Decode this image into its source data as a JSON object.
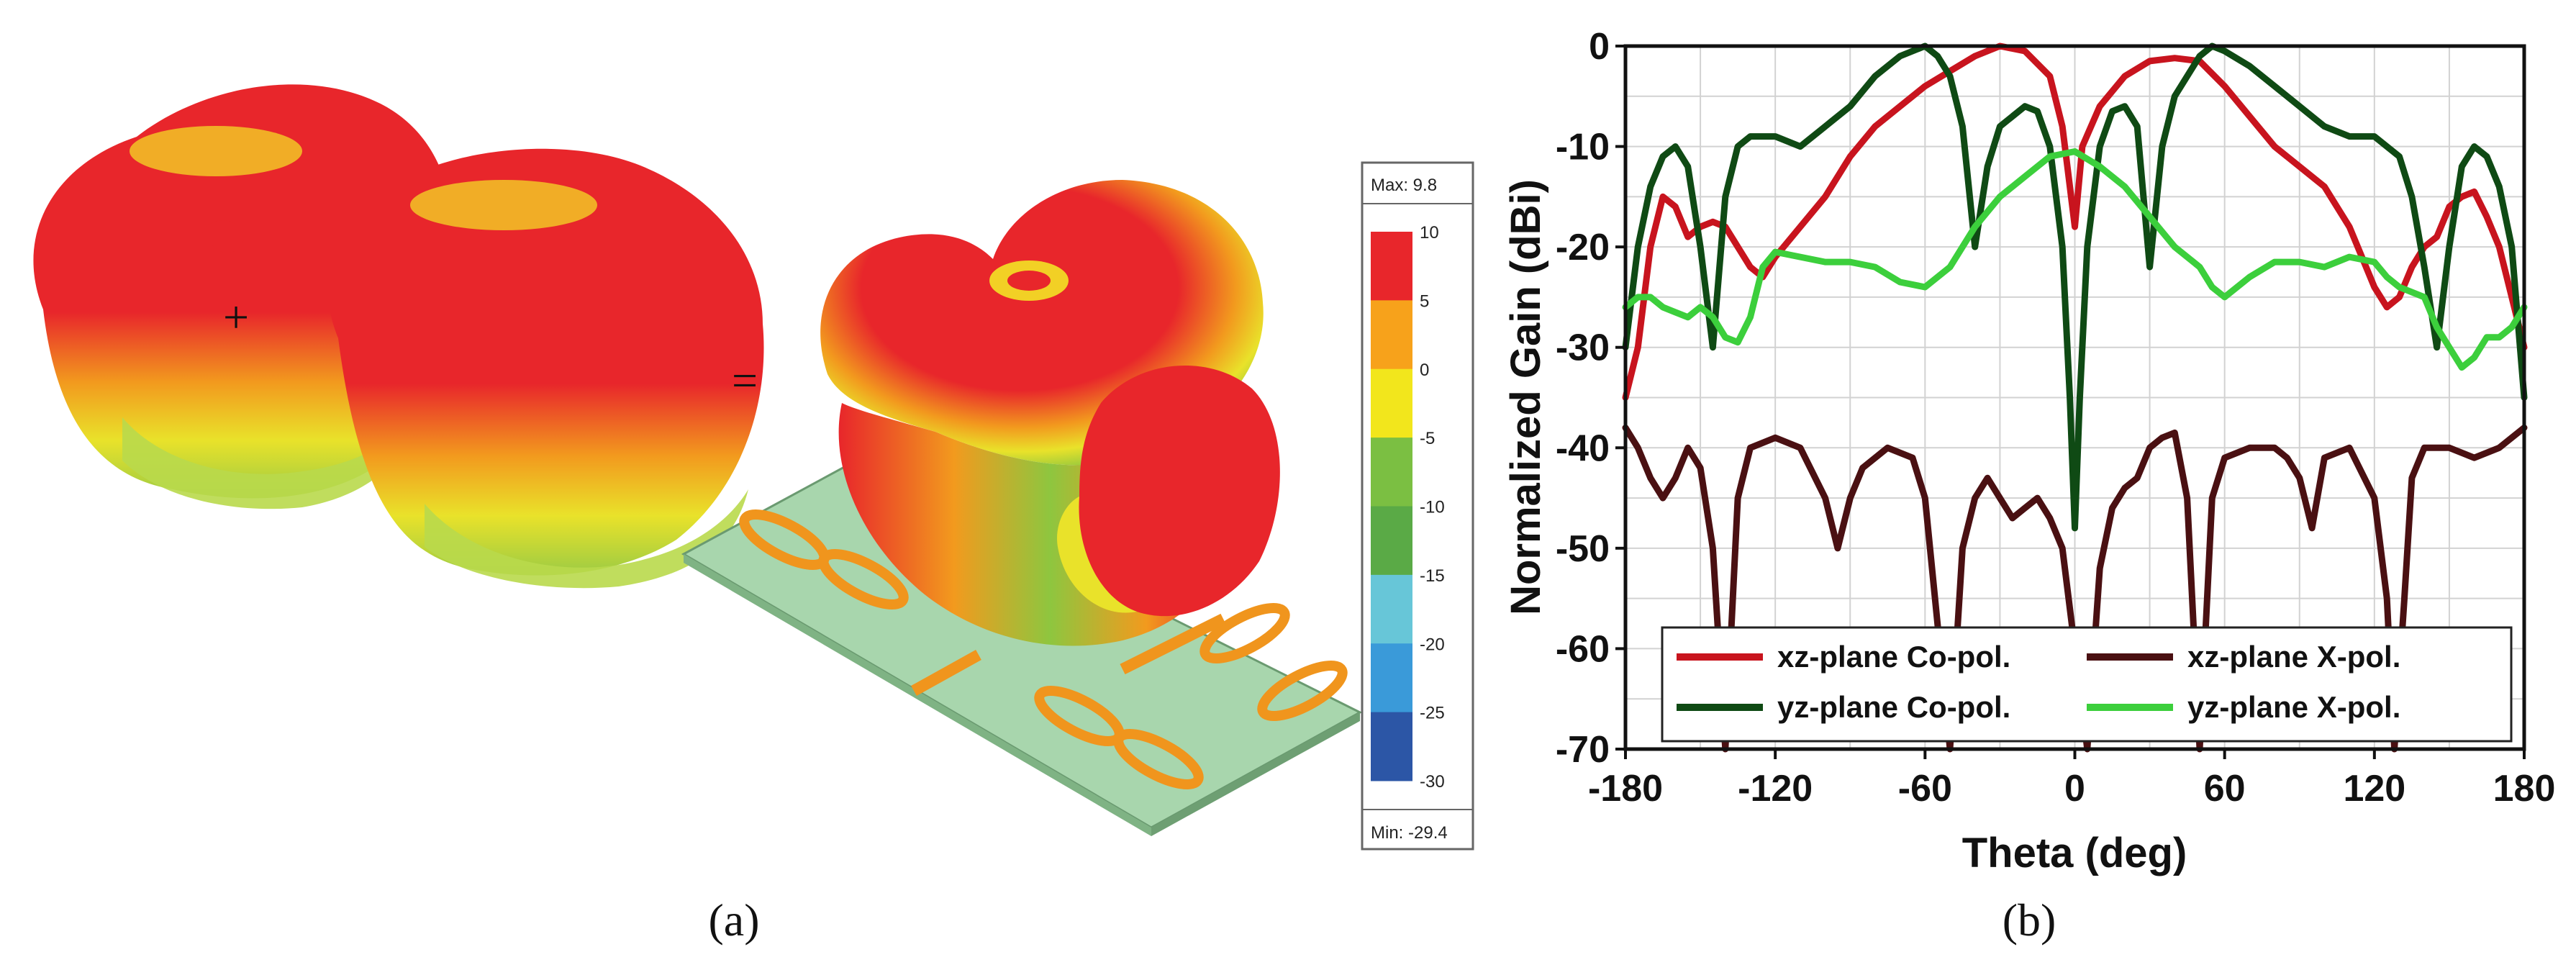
{
  "panel_a": {
    "caption": "(a)",
    "plus_sign": "+",
    "equals_sign": "=",
    "scale": {
      "max_label": "Max: 9.8",
      "min_label": "Min: -29.4",
      "ticks": [
        "10",
        "5",
        "0",
        "-5",
        "-10",
        "-15",
        "-20",
        "-25",
        "-30"
      ],
      "colors": [
        "#e8262b",
        "#f7a21b",
        "#f2e61c",
        "#7bbf42",
        "#5aaa46",
        "#67c6d8",
        "#3a9ad9",
        "#2c56a6"
      ]
    }
  },
  "panel_b": {
    "caption": "(b)"
  },
  "chart_data": {
    "type": "line",
    "title": "",
    "xlabel": "Theta (deg)",
    "ylabel": "Normalized Gain (dBi)",
    "xlim": [
      -180,
      180
    ],
    "ylim": [
      -70,
      0
    ],
    "xticks": [
      -180,
      -120,
      -60,
      0,
      60,
      120,
      180
    ],
    "yticks": [
      0,
      -10,
      -20,
      -30,
      -40,
      -50,
      -60,
      -70
    ],
    "grid": true,
    "legend_position": "bottom",
    "series": [
      {
        "name": "xz-plane Co-pol.",
        "color": "#c8141e",
        "points": [
          [
            -180,
            -35
          ],
          [
            -175,
            -30
          ],
          [
            -170,
            -20
          ],
          [
            -165,
            -15
          ],
          [
            -160,
            -16
          ],
          [
            -155,
            -19
          ],
          [
            -150,
            -18
          ],
          [
            -145,
            -17.5
          ],
          [
            -140,
            -18
          ],
          [
            -135,
            -20
          ],
          [
            -130,
            -22
          ],
          [
            -125,
            -23
          ],
          [
            -120,
            -21
          ],
          [
            -110,
            -18
          ],
          [
            -100,
            -15
          ],
          [
            -90,
            -11
          ],
          [
            -80,
            -8
          ],
          [
            -70,
            -6
          ],
          [
            -60,
            -4
          ],
          [
            -50,
            -2.5
          ],
          [
            -40,
            -1
          ],
          [
            -30,
            0
          ],
          [
            -20,
            -0.5
          ],
          [
            -10,
            -3
          ],
          [
            -5,
            -8
          ],
          [
            -2,
            -14
          ],
          [
            0,
            -18
          ],
          [
            3,
            -10
          ],
          [
            10,
            -6
          ],
          [
            20,
            -3
          ],
          [
            30,
            -1.5
          ],
          [
            40,
            -1.2
          ],
          [
            50,
            -1.5
          ],
          [
            60,
            -4
          ],
          [
            70,
            -7
          ],
          [
            80,
            -10
          ],
          [
            90,
            -12
          ],
          [
            100,
            -14
          ],
          [
            110,
            -18
          ],
          [
            120,
            -24
          ],
          [
            125,
            -26
          ],
          [
            130,
            -25
          ],
          [
            135,
            -22
          ],
          [
            140,
            -20
          ],
          [
            145,
            -19
          ],
          [
            150,
            -16
          ],
          [
            155,
            -15
          ],
          [
            160,
            -14.5
          ],
          [
            165,
            -17
          ],
          [
            170,
            -20
          ],
          [
            175,
            -25
          ],
          [
            180,
            -30
          ]
        ]
      },
      {
        "name": "xz-plane X-pol.",
        "color": "#4a1012",
        "points": [
          [
            -180,
            -38
          ],
          [
            -175,
            -40
          ],
          [
            -170,
            -43
          ],
          [
            -165,
            -45
          ],
          [
            -160,
            -43
          ],
          [
            -155,
            -40
          ],
          [
            -150,
            -42
          ],
          [
            -145,
            -50
          ],
          [
            -140,
            -70
          ],
          [
            -135,
            -45
          ],
          [
            -130,
            -40
          ],
          [
            -120,
            -39
          ],
          [
            -110,
            -40
          ],
          [
            -100,
            -45
          ],
          [
            -95,
            -50
          ],
          [
            -90,
            -45
          ],
          [
            -85,
            -42
          ],
          [
            -75,
            -40
          ],
          [
            -65,
            -41
          ],
          [
            -60,
            -45
          ],
          [
            -50,
            -70
          ],
          [
            -45,
            -50
          ],
          [
            -40,
            -45
          ],
          [
            -35,
            -43
          ],
          [
            -30,
            -45
          ],
          [
            -25,
            -47
          ],
          [
            -20,
            -46
          ],
          [
            -15,
            -45
          ],
          [
            -10,
            -47
          ],
          [
            -5,
            -50
          ],
          [
            0,
            -60
          ],
          [
            5,
            -70
          ],
          [
            10,
            -52
          ],
          [
            15,
            -46
          ],
          [
            20,
            -44
          ],
          [
            25,
            -43
          ],
          [
            30,
            -40
          ],
          [
            35,
            -39
          ],
          [
            40,
            -38.5
          ],
          [
            45,
            -45
          ],
          [
            50,
            -70
          ],
          [
            55,
            -45
          ],
          [
            60,
            -41
          ],
          [
            70,
            -40
          ],
          [
            80,
            -40
          ],
          [
            85,
            -41
          ],
          [
            90,
            -43
          ],
          [
            95,
            -48
          ],
          [
            100,
            -41
          ],
          [
            110,
            -40
          ],
          [
            120,
            -45
          ],
          [
            125,
            -55
          ],
          [
            128,
            -70
          ],
          [
            132,
            -55
          ],
          [
            135,
            -43
          ],
          [
            140,
            -40
          ],
          [
            150,
            -40
          ],
          [
            160,
            -41
          ],
          [
            170,
            -40
          ],
          [
            180,
            -38
          ]
        ]
      },
      {
        "name": "yz-plane Co-pol.",
        "color": "#0f4a14",
        "points": [
          [
            -180,
            -30
          ],
          [
            -175,
            -20
          ],
          [
            -170,
            -14
          ],
          [
            -165,
            -11
          ],
          [
            -160,
            -10
          ],
          [
            -155,
            -12
          ],
          [
            -150,
            -20
          ],
          [
            -145,
            -30
          ],
          [
            -140,
            -15
          ],
          [
            -135,
            -10
          ],
          [
            -130,
            -9
          ],
          [
            -120,
            -9
          ],
          [
            -110,
            -10
          ],
          [
            -100,
            -8
          ],
          [
            -90,
            -6
          ],
          [
            -80,
            -3
          ],
          [
            -70,
            -1
          ],
          [
            -60,
            0
          ],
          [
            -55,
            -1
          ],
          [
            -50,
            -3
          ],
          [
            -45,
            -8
          ],
          [
            -40,
            -20
          ],
          [
            -35,
            -12
          ],
          [
            -30,
            -8
          ],
          [
            -25,
            -7
          ],
          [
            -20,
            -6
          ],
          [
            -15,
            -6.5
          ],
          [
            -10,
            -10
          ],
          [
            -5,
            -20
          ],
          [
            -2,
            -35
          ],
          [
            0,
            -48
          ],
          [
            2,
            -35
          ],
          [
            5,
            -20
          ],
          [
            10,
            -10
          ],
          [
            15,
            -6.5
          ],
          [
            20,
            -6
          ],
          [
            25,
            -8
          ],
          [
            30,
            -22
          ],
          [
            35,
            -10
          ],
          [
            40,
            -5
          ],
          [
            50,
            -1
          ],
          [
            55,
            0
          ],
          [
            60,
            -0.5
          ],
          [
            70,
            -2
          ],
          [
            80,
            -4
          ],
          [
            90,
            -6
          ],
          [
            100,
            -8
          ],
          [
            110,
            -9
          ],
          [
            120,
            -9
          ],
          [
            125,
            -10
          ],
          [
            130,
            -11
          ],
          [
            135,
            -15
          ],
          [
            140,
            -22
          ],
          [
            145,
            -30
          ],
          [
            150,
            -20
          ],
          [
            155,
            -12
          ],
          [
            160,
            -10
          ],
          [
            165,
            -11
          ],
          [
            170,
            -14
          ],
          [
            175,
            -20
          ],
          [
            180,
            -35
          ]
        ]
      },
      {
        "name": "yz-plane X-pol.",
        "color": "#3ccf3c",
        "points": [
          [
            -180,
            -26
          ],
          [
            -175,
            -25
          ],
          [
            -170,
            -25
          ],
          [
            -165,
            -26
          ],
          [
            -160,
            -26.5
          ],
          [
            -155,
            -27
          ],
          [
            -150,
            -26
          ],
          [
            -145,
            -27
          ],
          [
            -140,
            -29
          ],
          [
            -135,
            -29.5
          ],
          [
            -130,
            -27
          ],
          [
            -125,
            -22
          ],
          [
            -120,
            -20.5
          ],
          [
            -110,
            -21
          ],
          [
            -100,
            -21.5
          ],
          [
            -90,
            -21.5
          ],
          [
            -80,
            -22
          ],
          [
            -70,
            -23.5
          ],
          [
            -60,
            -24
          ],
          [
            -50,
            -22
          ],
          [
            -40,
            -18
          ],
          [
            -30,
            -15
          ],
          [
            -20,
            -13
          ],
          [
            -10,
            -11
          ],
          [
            0,
            -10.5
          ],
          [
            10,
            -12
          ],
          [
            20,
            -14
          ],
          [
            30,
            -17
          ],
          [
            40,
            -20
          ],
          [
            50,
            -22
          ],
          [
            55,
            -24
          ],
          [
            60,
            -25
          ],
          [
            70,
            -23
          ],
          [
            80,
            -21.5
          ],
          [
            90,
            -21.5
          ],
          [
            100,
            -22
          ],
          [
            110,
            -21
          ],
          [
            120,
            -21.5
          ],
          [
            125,
            -23
          ],
          [
            130,
            -24
          ],
          [
            140,
            -25
          ],
          [
            145,
            -28
          ],
          [
            150,
            -30
          ],
          [
            155,
            -32
          ],
          [
            160,
            -31
          ],
          [
            165,
            -29
          ],
          [
            170,
            -29
          ],
          [
            175,
            -28
          ],
          [
            180,
            -26
          ]
        ]
      }
    ]
  }
}
